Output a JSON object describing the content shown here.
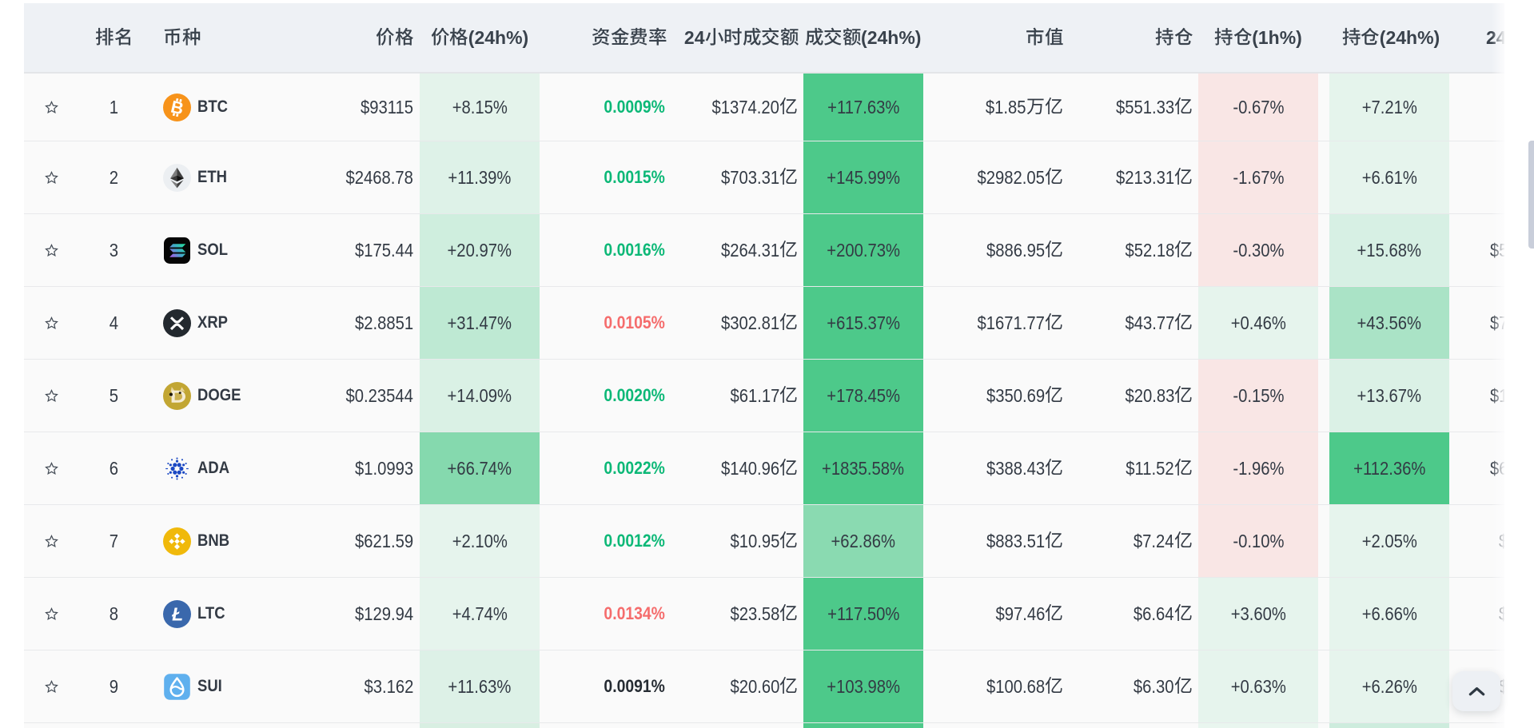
{
  "app": {
    "name": "crypto-futures-table",
    "language": "zh-CN"
  },
  "table": {
    "columns": [
      {
        "id": "favorite",
        "label": ""
      },
      {
        "id": "rank",
        "label": "排名"
      },
      {
        "id": "coin",
        "label": "币种"
      },
      {
        "id": "price",
        "label": "价格"
      },
      {
        "id": "price_chg_24h",
        "label": "价格(24h%)"
      },
      {
        "id": "funding_rate",
        "label": "资金费率"
      },
      {
        "id": "volume_24h",
        "label": "24小时成交额"
      },
      {
        "id": "volume_chg_24h",
        "label": "成交额(24h%)"
      },
      {
        "id": "market_cap",
        "label": "市值"
      },
      {
        "id": "open_interest",
        "label": "持仓"
      },
      {
        "id": "oi_chg_1h",
        "label": "持仓(1h%)"
      },
      {
        "id": "oi_chg_24h",
        "label": "持仓(24h%)"
      },
      {
        "id": "next_clipped",
        "label": "24"
      }
    ],
    "rows": [
      {
        "rank": "1",
        "symbol": "BTC",
        "icon": "btc-icon",
        "price": "$93115",
        "price_chg_24h": "+8.15%",
        "funding_rate": "0.0009%",
        "funding_color": "green",
        "volume_24h": "$1374.20亿",
        "volume_chg_24h": "+117.63%",
        "market_cap": "$1.85万亿",
        "open_interest": "$551.33亿",
        "oi_chg_1h": "-0.67%",
        "oi_chg_24h": "+7.21%",
        "next_fragment": ""
      },
      {
        "rank": "2",
        "symbol": "ETH",
        "icon": "eth-icon",
        "price": "$2468.78",
        "price_chg_24h": "+11.39%",
        "funding_rate": "0.0015%",
        "funding_color": "green",
        "volume_24h": "$703.31亿",
        "volume_chg_24h": "+145.99%",
        "market_cap": "$2982.05亿",
        "open_interest": "$213.31亿",
        "oi_chg_1h": "-1.67%",
        "oi_chg_24h": "+6.61%",
        "next_fragment": ""
      },
      {
        "rank": "3",
        "symbol": "SOL",
        "icon": "sol-icon",
        "price": "$175.44",
        "price_chg_24h": "+20.97%",
        "funding_rate": "0.0016%",
        "funding_color": "green",
        "volume_24h": "$264.31亿",
        "volume_chg_24h": "+200.73%",
        "market_cap": "$886.95亿",
        "open_interest": "$52.18亿",
        "oi_chg_1h": "-0.30%",
        "oi_chg_24h": "+15.68%",
        "next_fragment": "$5"
      },
      {
        "rank": "4",
        "symbol": "XRP",
        "icon": "xrp-icon",
        "price": "$2.8851",
        "price_chg_24h": "+31.47%",
        "funding_rate": "0.0105%",
        "funding_color": "red",
        "volume_24h": "$302.81亿",
        "volume_chg_24h": "+615.37%",
        "market_cap": "$1671.77亿",
        "open_interest": "$43.77亿",
        "oi_chg_1h": "+0.46%",
        "oi_chg_24h": "+43.56%",
        "next_fragment": "$7"
      },
      {
        "rank": "5",
        "symbol": "DOGE",
        "icon": "doge-icon",
        "price": "$0.23544",
        "price_chg_24h": "+14.09%",
        "funding_rate": "0.0020%",
        "funding_color": "green",
        "volume_24h": "$61.17亿",
        "volume_chg_24h": "+178.45%",
        "market_cap": "$350.69亿",
        "open_interest": "$20.83亿",
        "oi_chg_1h": "-0.15%",
        "oi_chg_24h": "+13.67%",
        "next_fragment": "$1"
      },
      {
        "rank": "6",
        "symbol": "ADA",
        "icon": "ada-icon",
        "price": "$1.0993",
        "price_chg_24h": "+66.74%",
        "funding_rate": "0.0022%",
        "funding_color": "green",
        "volume_24h": "$140.96亿",
        "volume_chg_24h": "+1835.58%",
        "market_cap": "$388.43亿",
        "open_interest": "$11.52亿",
        "oi_chg_1h": "-1.96%",
        "oi_chg_24h": "+112.36%",
        "next_fragment": "$6"
      },
      {
        "rank": "7",
        "symbol": "BNB",
        "icon": "bnb-icon",
        "price": "$621.59",
        "price_chg_24h": "+2.10%",
        "funding_rate": "0.0012%",
        "funding_color": "green",
        "volume_24h": "$10.95亿",
        "volume_chg_24h": "+62.86%",
        "market_cap": "$883.51亿",
        "open_interest": "$7.24亿",
        "oi_chg_1h": "-0.10%",
        "oi_chg_24h": "+2.05%",
        "next_fragment": "$"
      },
      {
        "rank": "8",
        "symbol": "LTC",
        "icon": "ltc-icon",
        "price": "$129.94",
        "price_chg_24h": "+4.74%",
        "funding_rate": "0.0134%",
        "funding_color": "red",
        "volume_24h": "$23.58亿",
        "volume_chg_24h": "+117.50%",
        "market_cap": "$97.46亿",
        "open_interest": "$6.64亿",
        "oi_chg_1h": "+3.60%",
        "oi_chg_24h": "+6.66%",
        "next_fragment": "$"
      },
      {
        "rank": "9",
        "symbol": "SUI",
        "icon": "sui-icon",
        "price": "$3.162",
        "price_chg_24h": "+11.63%",
        "funding_rate": "0.0091%",
        "funding_color": "dark",
        "volume_24h": "$20.60亿",
        "volume_chg_24h": "+103.98%",
        "market_cap": "$100.68亿",
        "open_interest": "$6.30亿",
        "oi_chg_1h": "+0.63%",
        "oi_chg_24h": "+6.26%",
        "next_fragment": "$"
      }
    ],
    "partial_row_colors": {
      "price_chg_24h_bg": "#d8efe2",
      "volume_chg_24h_bg": "#4DC98A",
      "oi_chg_1h_bg": "#e9f6ef",
      "oi_chg_24h_bg": "#cdecdd"
    }
  },
  "colors": {
    "positive_cell_base": "#4DC98A",
    "negative_cell_base": "#F4635E",
    "funding_green": "#0CB877",
    "funding_red": "#F56C6C",
    "funding_dark": "#262C33",
    "header_bg": "#EEF1F5",
    "row_bg": "#FAFAFA",
    "text": "#333A44"
  },
  "scrollbar": {
    "orientation": "vertical",
    "thumb_visible": true
  },
  "scroll_top_button": {
    "icon": "chevron-up-icon"
  }
}
